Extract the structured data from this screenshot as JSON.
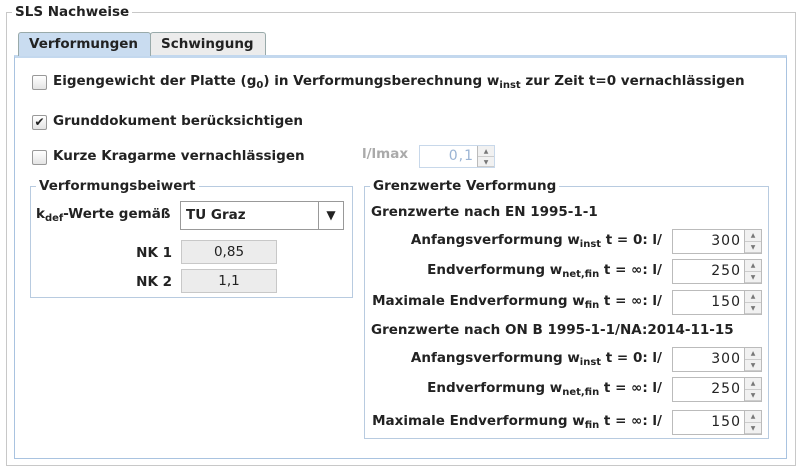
{
  "group_title": "SLS Nachweise",
  "tabs": [
    {
      "label": "Verformungen",
      "selected": true
    },
    {
      "label": "Schwingung",
      "selected": false
    }
  ],
  "options": {
    "eigengewicht": {
      "pre": "Eigengewicht der Platte (g",
      "sub1": "0",
      "mid": ") in Verformungsberechnung w",
      "sub2": "inst",
      "post": " zur Zeit t=0 vernachlässigen",
      "checked": false
    },
    "grunddokument": {
      "label": "Grunddokument berücksichtigen",
      "checked": true,
      "check_glyph": "✔"
    },
    "kragarme": {
      "label": "Kurze Kragarme vernachlässigen",
      "checked": false
    },
    "lmax": {
      "label": "l/lmax",
      "value": "0,1",
      "disabled": true
    }
  },
  "verformungsbeiwert": {
    "title": "Verformungsbeiwert",
    "kdef_pre": "k",
    "kdef_sub": "def",
    "kdef_post": "-Werte gemäß",
    "combo_value": "TU Graz",
    "nk1_label": "NK 1",
    "nk1_value": "0,85",
    "nk2_label": "NK 2",
    "nk2_value": "1,1"
  },
  "grenzwerte": {
    "title": "Grenzwerte Verformung",
    "sections": [
      {
        "heading": "Grenzwerte nach EN 1995-1-1",
        "rows": [
          {
            "pre": "Anfangsverformung w",
            "sub": "inst",
            "post": " t = 0: l/",
            "value": "300"
          },
          {
            "pre": "Endverformung w",
            "sub": "net,fin",
            "post": " t = ∞: l/",
            "value": "250"
          },
          {
            "pre": "Maximale Endverformung w",
            "sub": "fin",
            "post": " t = ∞: l/",
            "value": "150"
          }
        ]
      },
      {
        "heading": "Grenzwerte nach ON B 1995-1-1/NA:2014-11-15",
        "rows": [
          {
            "pre": "Anfangsverformung w",
            "sub": "inst",
            "post": " t = 0: l/",
            "value": "300"
          },
          {
            "pre": "Endverformung w",
            "sub": "net,fin",
            "post": " t = ∞: l/",
            "value": "250"
          },
          {
            "pre": "Maximale Endverformung w",
            "sub": "fin",
            "post": " t = ∞: l/",
            "value": "150"
          }
        ]
      }
    ]
  },
  "spin_up": "▲",
  "spin_down": "▼",
  "combo_arrow": "▼"
}
